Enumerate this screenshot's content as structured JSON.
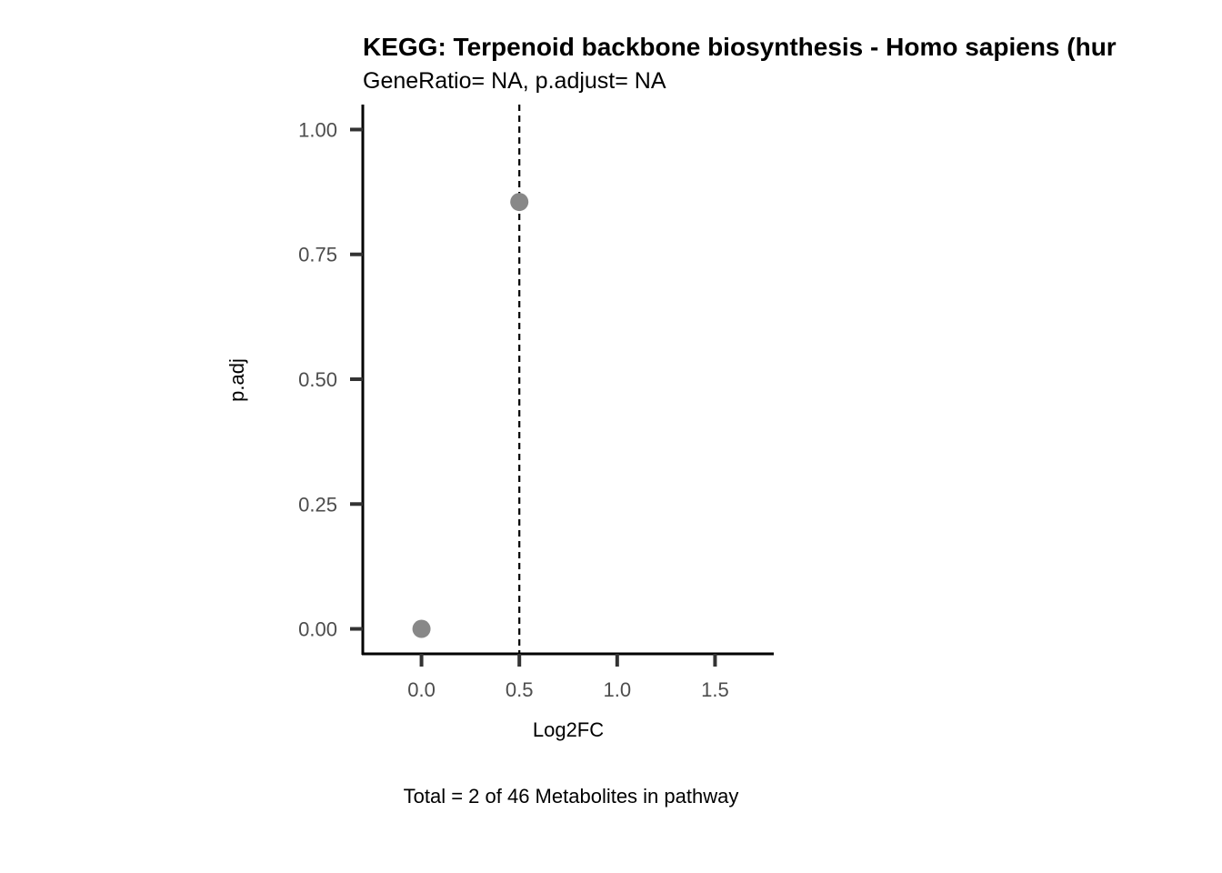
{
  "chart_data": {
    "type": "scatter",
    "title": "KEGG: Terpenoid backbone biosynthesis - Homo sapiens (hur",
    "subtitle": "GeneRatio= NA, p.adjust= NA",
    "xlabel": "Log2FC",
    "ylabel": "p.adj",
    "caption": "Total = 2 of 46 Metabolites in pathway",
    "xlim": [
      -0.3,
      1.8
    ],
    "ylim": [
      -0.05,
      1.05
    ],
    "x_ticks": [
      0.0,
      0.5,
      1.0,
      1.5
    ],
    "x_tick_labels": [
      "0.0",
      "0.5",
      "1.0",
      "1.5"
    ],
    "y_ticks": [
      0.0,
      0.25,
      0.5,
      0.75,
      1.0
    ],
    "y_tick_labels": [
      "0.00",
      "0.25",
      "0.50",
      "0.75",
      "1.00"
    ],
    "points": [
      {
        "x": 0.0,
        "y": 0.0
      },
      {
        "x": 0.5,
        "y": 0.855
      }
    ],
    "reference_line": {
      "orientation": "vertical",
      "x": 0.5,
      "style": "dashed"
    },
    "point_color": "#888888",
    "axis_color": "#000000",
    "tick_color": "#333333",
    "grid": false,
    "legend": "none"
  }
}
